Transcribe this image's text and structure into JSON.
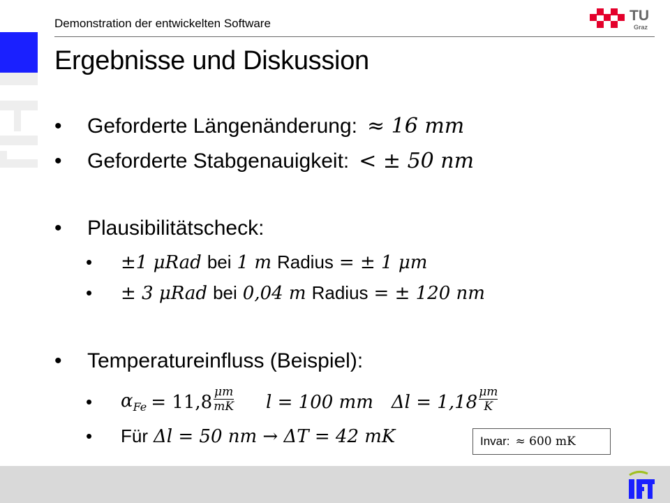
{
  "header": {
    "text": "Demonstration der entwickelten Software"
  },
  "logo": {
    "tu": "TU",
    "graz": "Graz"
  },
  "title": "Ergebnisse und Diskussion",
  "bullets": [
    {
      "label": "Geforderte Längenänderung:",
      "math": "≈ 16 mm"
    },
    {
      "label": "Geforderte Stabgenauigkeit:",
      "math": "< ± 50 nm"
    },
    {
      "label": "Plausibilitätscheck:"
    },
    {
      "label": "Temperatureinfluss (Beispiel):"
    }
  ],
  "plausibility": [
    {
      "a": "±1 μRad",
      "mid": "bei",
      "b": "1 m",
      "mid2": "Radius",
      "c": "= ± 1 μm"
    },
    {
      "a": "± 3 μRad",
      "mid": "bei",
      "b": "0,04 m",
      "mid2": "Radius",
      "c": "= ± 120 nm"
    }
  ],
  "temperature": {
    "alpha": "α",
    "alpha_sub": "Fe",
    "alpha_value": "= 11,8",
    "frac1_num": "μm",
    "frac1_den": "mK",
    "length": "l = 100 mm",
    "delta_l": "Δl = 1,18",
    "frac2_num": "μm",
    "frac2_den": "K",
    "fuer": "Für",
    "fuer_math": "Δl = 50 nm  → ΔT = 42 mK"
  },
  "invar": {
    "label": "Invar:",
    "value": "≈ 600 mK"
  },
  "colors": {
    "tu_red": "#e4002b",
    "ift_blue": "#1a20ff",
    "footer": "#d9d9d9"
  }
}
